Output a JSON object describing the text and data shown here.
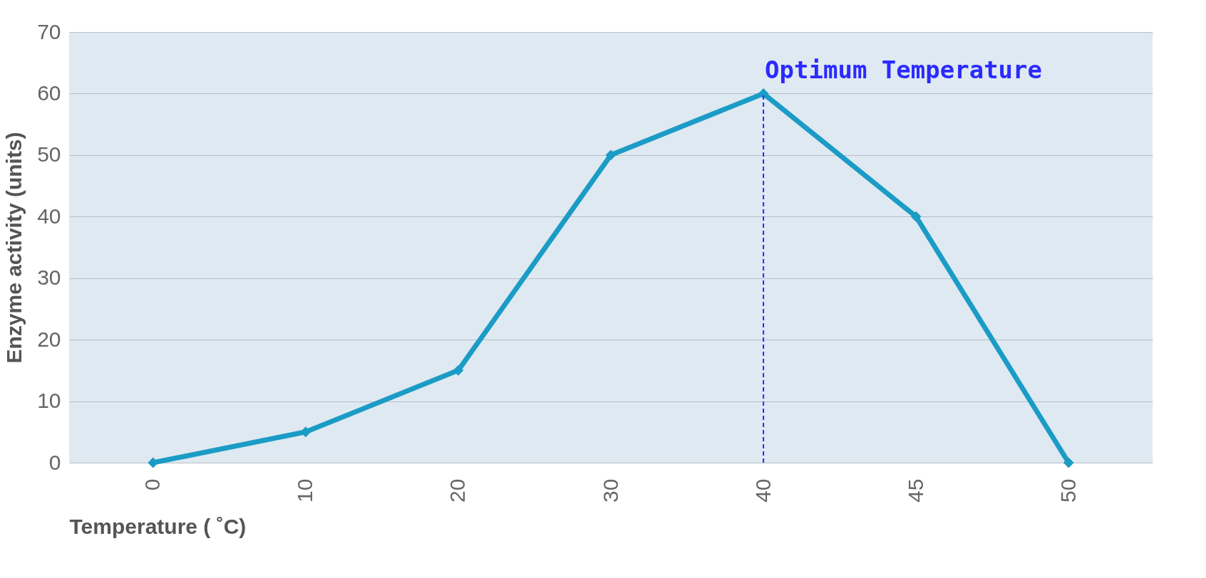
{
  "chart_data": {
    "type": "line",
    "xlabel": "Temperature ( ˚C)",
    "ylabel": "Enzyme activity (units)",
    "categories": [
      "0",
      "10",
      "20",
      "30",
      "40",
      "45",
      "50"
    ],
    "series": [
      {
        "color": "#1b9cc6",
        "values": [
          0,
          5,
          15,
          50,
          60,
          40,
          0
        ]
      }
    ],
    "ylim": [
      0,
      70
    ],
    "yticks": [
      0,
      10,
      20,
      30,
      40,
      50,
      60,
      70
    ],
    "grid": "y",
    "marker": "diamond",
    "line_style": "solid",
    "annotations": [
      {
        "text": "Optimum Temperature",
        "x": "40",
        "y": 60
      }
    ],
    "ref_lines": [
      {
        "axis": "x",
        "value": "40",
        "color": "#2a2aff",
        "line_style": "dashed"
      }
    ]
  }
}
